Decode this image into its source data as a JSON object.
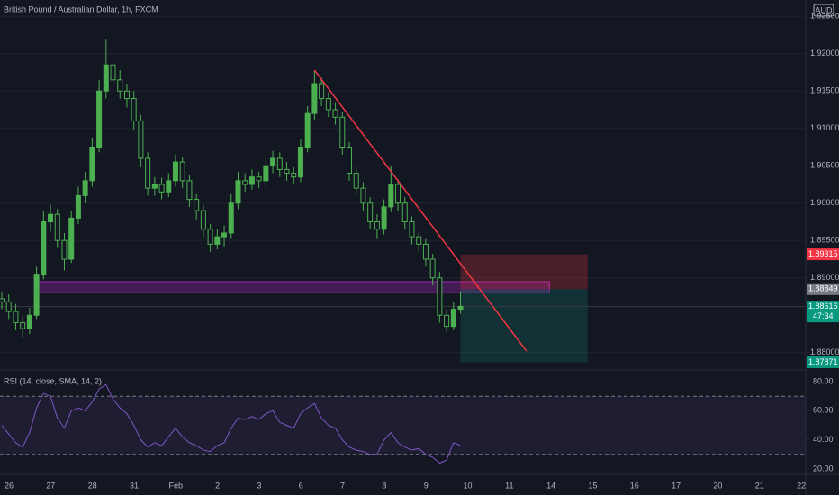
{
  "header": {
    "title": "British Pound / Australian Dollar, 1h, FXCM",
    "currency": "AUD"
  },
  "chart_data": [
    {
      "type": "candlestick",
      "categories": [
        "26",
        "27",
        "28",
        "31",
        "Feb",
        "2",
        "3",
        "6",
        "7",
        "8",
        "9",
        "10",
        "11",
        "14",
        "15",
        "16",
        "17",
        "20",
        "21",
        "22"
      ],
      "open": [
        1.8872,
        1.8868,
        1.8855,
        1.884,
        1.8832,
        1.885,
        1.8905,
        1.8975,
        1.8985,
        1.895,
        1.8925,
        1.898,
        1.901,
        1.903,
        1.9075,
        1.915,
        1.9185,
        1.9165,
        1.915,
        1.914,
        1.911,
        1.906,
        1.902,
        1.9025,
        1.9015,
        1.903,
        1.9055,
        1.903,
        1.9005,
        1.899,
        1.8965,
        1.8945,
        1.8955,
        1.896,
        1.9,
        1.903,
        1.9025,
        1.9035,
        1.903,
        1.905,
        1.906,
        1.9045,
        1.904,
        1.9035,
        1.9075,
        1.912,
        1.916,
        1.914,
        1.9125,
        1.9115,
        1.9075,
        1.904,
        1.902,
        1.9,
        1.8975,
        1.8965,
        1.8995,
        1.9025,
        1.9,
        1.8975,
        1.8955,
        1.8945,
        1.8925,
        1.89,
        1.885,
        1.8835,
        1.8858
      ],
      "high": [
        1.8882,
        1.8878,
        1.8865,
        1.885,
        1.886,
        1.8915,
        1.899,
        1.8998,
        1.8992,
        1.896,
        1.899,
        1.9022,
        1.9042,
        1.9088,
        1.9165,
        1.922,
        1.92,
        1.9178,
        1.916,
        1.915,
        1.9118,
        1.9068,
        1.9035,
        1.9034,
        1.904,
        1.9065,
        1.9062,
        1.9038,
        1.9012,
        1.8998,
        1.8972,
        1.8965,
        1.897,
        1.9012,
        1.9042,
        1.904,
        1.9045,
        1.9042,
        1.906,
        1.907,
        1.9068,
        1.9055,
        1.9048,
        1.9085,
        1.913,
        1.9178,
        1.9168,
        1.9148,
        1.9135,
        1.9122,
        1.9082,
        1.9048,
        1.9028,
        1.9008,
        1.8985,
        1.9005,
        1.905,
        1.9032,
        1.9008,
        1.8982,
        1.8962,
        1.8952,
        1.8932,
        1.8908,
        1.8858,
        1.8868,
        1.8882
      ],
      "low": [
        1.8858,
        1.8845,
        1.883,
        1.882,
        1.8825,
        1.8845,
        1.8898,
        1.8962,
        1.894,
        1.891,
        1.892,
        1.8972,
        1.9,
        1.9022,
        1.9068,
        1.914,
        1.9155,
        1.914,
        1.9128,
        1.9098,
        1.9048,
        1.901,
        1.901,
        1.9005,
        1.9008,
        1.9022,
        1.902,
        1.8995,
        1.8978,
        1.8955,
        1.8935,
        1.8938,
        1.8942,
        1.8952,
        1.8992,
        1.9015,
        1.9018,
        1.902,
        1.9022,
        1.904,
        1.9035,
        1.903,
        1.9025,
        1.9028,
        1.9068,
        1.9112,
        1.913,
        1.9115,
        1.9105,
        1.9065,
        1.903,
        1.901,
        1.899,
        1.8965,
        1.8952,
        1.8958,
        1.8988,
        1.899,
        1.8965,
        1.8945,
        1.8935,
        1.8915,
        1.889,
        1.884,
        1.8828,
        1.883,
        1.8852
      ],
      "close": [
        1.8868,
        1.8855,
        1.884,
        1.8832,
        1.885,
        1.8905,
        1.8975,
        1.8985,
        1.895,
        1.8925,
        1.898,
        1.901,
        1.903,
        1.9075,
        1.915,
        1.9185,
        1.9165,
        1.915,
        1.914,
        1.911,
        1.906,
        1.902,
        1.9025,
        1.9015,
        1.903,
        1.9055,
        1.903,
        1.9005,
        1.899,
        1.8965,
        1.8945,
        1.8955,
        1.896,
        1.9,
        1.903,
        1.9025,
        1.9035,
        1.903,
        1.905,
        1.906,
        1.9045,
        1.904,
        1.9035,
        1.9075,
        1.912,
        1.916,
        1.914,
        1.9125,
        1.9115,
        1.9075,
        1.904,
        1.902,
        1.9,
        1.8975,
        1.8965,
        1.8995,
        1.9025,
        1.9,
        1.8975,
        1.8955,
        1.8945,
        1.8925,
        1.89,
        1.885,
        1.8835,
        1.8858,
        1.8862
      ],
      "color": "#4caf50",
      "ylim": [
        1.8778,
        1.9272
      ],
      "yticks": [
        {
          "value": 1.925,
          "label": "1.92500"
        },
        {
          "value": 1.92,
          "label": "1.92000"
        },
        {
          "value": 1.915,
          "label": "1.91500"
        },
        {
          "value": 1.91,
          "label": "1.91000"
        },
        {
          "value": 1.905,
          "label": "1.90500"
        },
        {
          "value": 1.9,
          "label": "1.90000"
        },
        {
          "value": 1.895,
          "label": "1.89500"
        },
        {
          "value": 1.89,
          "label": "1.89000"
        },
        {
          "value": 1.88,
          "label": "1.88000"
        }
      ],
      "price_labels": [
        {
          "value": 1.89315,
          "label": "1.89315",
          "color": "#f23645"
        },
        {
          "value": 1.88849,
          "label": "1.88849",
          "color": "#787b86"
        },
        {
          "value": 1.88616,
          "label": "1.88616",
          "color": "#089981"
        },
        {
          "value": 1.87871,
          "label": "1.87871",
          "color": "#089981"
        }
      ],
      "countdown": "47:34",
      "trendline": {
        "x": [
          45,
          75.5
        ],
        "y": [
          1.9178,
          1.8802
        ],
        "color": "#f23645"
      },
      "zone": {
        "x": [
          4.9,
          78.8
        ],
        "y": [
          1.888,
          1.8895
        ],
        "color": "#9c27b0"
      },
      "position": {
        "x": [
          66,
          84.3
        ]
      }
    },
    {
      "type": "line",
      "title": "RSI (14, close, SMA, 14, 2)",
      "values": [
        50,
        44,
        38,
        35,
        45,
        62,
        72,
        70,
        55,
        48,
        60,
        62,
        60,
        66,
        75,
        78,
        68,
        62,
        58,
        50,
        40,
        35,
        38,
        36,
        42,
        48,
        42,
        38,
        36,
        33,
        32,
        36,
        38,
        48,
        55,
        54,
        56,
        54,
        58,
        60,
        52,
        50,
        48,
        58,
        62,
        65,
        55,
        50,
        48,
        40,
        35,
        33,
        32,
        30,
        30,
        40,
        45,
        38,
        35,
        33,
        34,
        30,
        28,
        24,
        26,
        38,
        36
      ],
      "color": "#7e57c2",
      "ylim": [
        17.5,
        85.6
      ],
      "yticks": [
        {
          "value": 80,
          "label": "80.00"
        },
        {
          "value": 60,
          "label": "60.00"
        },
        {
          "value": 40,
          "label": "40.00"
        },
        {
          "value": 20,
          "label": "20.00"
        }
      ],
      "bands": [
        30,
        70
      ]
    }
  ]
}
